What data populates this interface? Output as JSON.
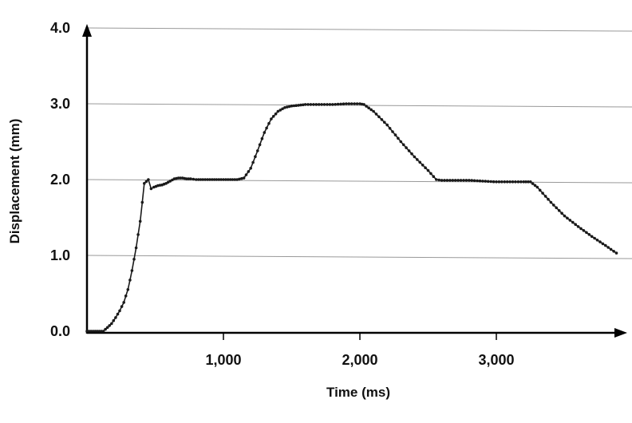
{
  "chart_data": {
    "type": "line",
    "title": "",
    "xlabel": "Time (ms)",
    "ylabel": "Displacement (mm)",
    "xlim": [
      0,
      3900
    ],
    "ylim": [
      0,
      4.0
    ],
    "x_ticks": [
      {
        "value": 1000,
        "label": "1,000"
      },
      {
        "value": 2000,
        "label": "2,000"
      },
      {
        "value": 3000,
        "label": "3,000"
      }
    ],
    "y_ticks": [
      {
        "value": 0,
        "label": "0.0"
      },
      {
        "value": 1,
        "label": "1.0"
      },
      {
        "value": 2,
        "label": "2.0"
      },
      {
        "value": 3,
        "label": "3.0"
      },
      {
        "value": 4,
        "label": "4.0"
      }
    ],
    "grid": "horizontal",
    "legend": "none",
    "colors": {
      "line": "#1a1a1a",
      "grid": "#999999",
      "axis": "#000000"
    },
    "series": [
      {
        "marker": "dot",
        "points": [
          [
            0,
            0
          ],
          [
            30,
            0
          ],
          [
            60,
            0
          ],
          [
            90,
            0
          ],
          [
            120,
            0
          ],
          [
            150,
            0.05
          ],
          [
            180,
            0.1
          ],
          [
            210,
            0.18
          ],
          [
            240,
            0.27
          ],
          [
            270,
            0.38
          ],
          [
            300,
            0.55
          ],
          [
            330,
            0.8
          ],
          [
            360,
            1.1
          ],
          [
            390,
            1.45
          ],
          [
            420,
            1.95
          ],
          [
            450,
            2.0
          ],
          [
            470,
            1.88
          ],
          [
            490,
            1.9
          ],
          [
            520,
            1.92
          ],
          [
            550,
            1.93
          ],
          [
            580,
            1.95
          ],
          [
            610,
            1.98
          ],
          [
            640,
            2.01
          ],
          [
            670,
            2.02
          ],
          [
            700,
            2.02
          ],
          [
            730,
            2.01
          ],
          [
            760,
            2.01
          ],
          [
            800,
            2.0
          ],
          [
            850,
            2.0
          ],
          [
            900,
            2.0
          ],
          [
            950,
            2.0
          ],
          [
            1000,
            2.0
          ],
          [
            1050,
            2.0
          ],
          [
            1100,
            2.0
          ],
          [
            1150,
            2.02
          ],
          [
            1200,
            2.15
          ],
          [
            1250,
            2.38
          ],
          [
            1300,
            2.62
          ],
          [
            1350,
            2.8
          ],
          [
            1400,
            2.9
          ],
          [
            1450,
            2.95
          ],
          [
            1500,
            2.97
          ],
          [
            1550,
            2.98
          ],
          [
            1600,
            2.99
          ],
          [
            1700,
            2.99
          ],
          [
            1800,
            2.99
          ],
          [
            1900,
            3.0
          ],
          [
            2000,
            3.0
          ],
          [
            2030,
            2.99
          ],
          [
            2100,
            2.9
          ],
          [
            2200,
            2.72
          ],
          [
            2300,
            2.5
          ],
          [
            2400,
            2.3
          ],
          [
            2500,
            2.12
          ],
          [
            2560,
            2.0
          ],
          [
            2600,
            1.99
          ],
          [
            2700,
            1.99
          ],
          [
            2800,
            1.99
          ],
          [
            2900,
            1.98
          ],
          [
            3000,
            1.97
          ],
          [
            3100,
            1.97
          ],
          [
            3200,
            1.97
          ],
          [
            3250,
            1.97
          ],
          [
            3300,
            1.9
          ],
          [
            3400,
            1.7
          ],
          [
            3500,
            1.52
          ],
          [
            3600,
            1.38
          ],
          [
            3700,
            1.25
          ],
          [
            3800,
            1.13
          ],
          [
            3880,
            1.03
          ]
        ]
      }
    ]
  }
}
